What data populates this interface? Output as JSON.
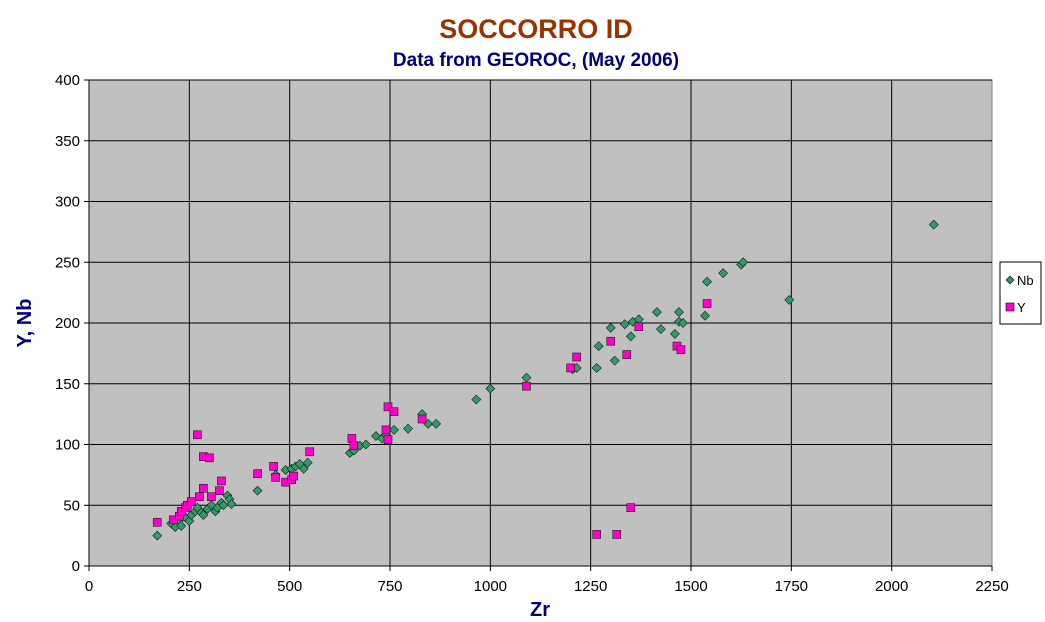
{
  "colors": {
    "title": "#993300",
    "subtitle": "#000080",
    "axis_label": "#000080",
    "plot_background": "#c0c0c0",
    "nb_marker": "#339966",
    "y_marker": "#ff00cc"
  },
  "chart_data": {
    "type": "scatter",
    "title": "SOCCORRO ID",
    "subtitle": "Data from GEOROC, (May 2006)",
    "xlabel": "Zr",
    "ylabel": "Y, Nb",
    "xlim": [
      0,
      2250
    ],
    "ylim": [
      0,
      400
    ],
    "x_ticks": [
      "0",
      "250",
      "500",
      "750",
      "1000",
      "1250",
      "1500",
      "1750",
      "2000",
      "2250"
    ],
    "y_ticks": [
      "0",
      "50",
      "100",
      "150",
      "200",
      "250",
      "300",
      "350",
      "400"
    ],
    "grid": true,
    "legend_position": "right",
    "series": [
      {
        "name": "Nb",
        "marker": "diamond",
        "points": [
          [
            170,
            25
          ],
          [
            205,
            35
          ],
          [
            215,
            32
          ],
          [
            225,
            38
          ],
          [
            230,
            33
          ],
          [
            240,
            40
          ],
          [
            250,
            37
          ],
          [
            255,
            42
          ],
          [
            265,
            45
          ],
          [
            270,
            48
          ],
          [
            280,
            44
          ],
          [
            285,
            42
          ],
          [
            295,
            47
          ],
          [
            305,
            50
          ],
          [
            315,
            45
          ],
          [
            320,
            48
          ],
          [
            330,
            52
          ],
          [
            335,
            50
          ],
          [
            345,
            58
          ],
          [
            350,
            55
          ],
          [
            355,
            51
          ],
          [
            420,
            62
          ],
          [
            465,
            75
          ],
          [
            490,
            79
          ],
          [
            505,
            80
          ],
          [
            515,
            82
          ],
          [
            525,
            84
          ],
          [
            535,
            80
          ],
          [
            545,
            85
          ],
          [
            650,
            93
          ],
          [
            660,
            95
          ],
          [
            675,
            99
          ],
          [
            690,
            100
          ],
          [
            715,
            107
          ],
          [
            730,
            105
          ],
          [
            740,
            108
          ],
          [
            760,
            112
          ],
          [
            795,
            113
          ],
          [
            830,
            125
          ],
          [
            845,
            117
          ],
          [
            865,
            117
          ],
          [
            965,
            137
          ],
          [
            1000,
            146
          ],
          [
            1090,
            155
          ],
          [
            1205,
            162
          ],
          [
            1215,
            163
          ],
          [
            1265,
            163
          ],
          [
            1270,
            181
          ],
          [
            1300,
            196
          ],
          [
            1310,
            169
          ],
          [
            1335,
            199
          ],
          [
            1350,
            189
          ],
          [
            1355,
            201
          ],
          [
            1370,
            203
          ],
          [
            1415,
            209
          ],
          [
            1425,
            195
          ],
          [
            1460,
            191
          ],
          [
            1470,
            209
          ],
          [
            1470,
            201
          ],
          [
            1480,
            200
          ],
          [
            1535,
            206
          ],
          [
            1540,
            234
          ],
          [
            1580,
            241
          ],
          [
            1625,
            248
          ],
          [
            1630,
            250
          ],
          [
            1745,
            219
          ],
          [
            2105,
            281
          ]
        ]
      },
      {
        "name": "Y",
        "marker": "square",
        "points": [
          [
            170,
            36
          ],
          [
            210,
            38
          ],
          [
            225,
            41
          ],
          [
            230,
            45
          ],
          [
            240,
            48
          ],
          [
            245,
            50
          ],
          [
            255,
            53
          ],
          [
            270,
            108
          ],
          [
            275,
            57
          ],
          [
            285,
            90
          ],
          [
            285,
            64
          ],
          [
            300,
            89
          ],
          [
            305,
            57
          ],
          [
            325,
            62
          ],
          [
            330,
            70
          ],
          [
            420,
            76
          ],
          [
            460,
            82
          ],
          [
            465,
            73
          ],
          [
            490,
            69
          ],
          [
            505,
            71
          ],
          [
            510,
            74
          ],
          [
            550,
            94
          ],
          [
            655,
            105
          ],
          [
            660,
            99
          ],
          [
            740,
            112
          ],
          [
            745,
            104
          ],
          [
            745,
            131
          ],
          [
            760,
            127
          ],
          [
            830,
            121
          ],
          [
            1090,
            148
          ],
          [
            1200,
            163
          ],
          [
            1215,
            172
          ],
          [
            1265,
            26
          ],
          [
            1300,
            185
          ],
          [
            1315,
            26
          ],
          [
            1340,
            174
          ],
          [
            1350,
            48
          ],
          [
            1370,
            197
          ],
          [
            1465,
            181
          ],
          [
            1475,
            178
          ],
          [
            1540,
            216
          ]
        ]
      }
    ]
  }
}
